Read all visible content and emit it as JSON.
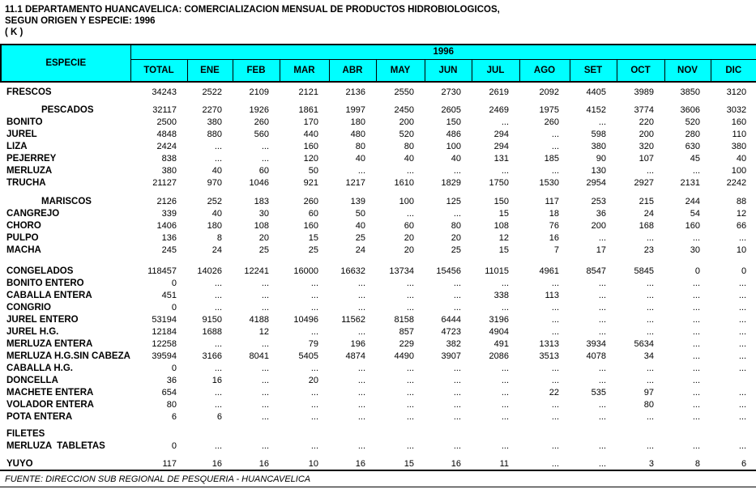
{
  "title": {
    "line1": "11.1 DEPARTAMENTO HUANCAVELICA: COMERCIALIZACION MENSUAL DE PRODUCTOS HIDROBIOLOGICOS,",
    "line2": "SEGUN ORIGEN Y ESPECIE: 1996",
    "line3": "( K )"
  },
  "colors": {
    "header_bg": "#00FFFF",
    "border": "#000000",
    "text": "#000000",
    "background": "#FFFFFF"
  },
  "table": {
    "especie_header": "ESPECIE",
    "year_header": "1996",
    "columns": [
      "TOTAL",
      "ENE",
      "FEB",
      "MAR",
      "ABR",
      "MAY",
      "JUN",
      "JUL",
      "AGO",
      "SET",
      "OCT",
      "NOV",
      "DIC"
    ],
    "rows": [
      {
        "name": "FRESCOS",
        "indent": 0,
        "values": [
          "34243",
          "2522",
          "2109",
          "2121",
          "2136",
          "2550",
          "2730",
          "2619",
          "2092",
          "4405",
          "3989",
          "3850",
          "3120"
        ]
      },
      {
        "spacer": 7
      },
      {
        "name": "PESCADOS",
        "indent": 1,
        "values": [
          "32117",
          "2270",
          "1926",
          "1861",
          "1997",
          "2450",
          "2605",
          "2469",
          "1975",
          "4152",
          "3774",
          "3606",
          "3032"
        ]
      },
      {
        "name": "BONITO",
        "indent": 0,
        "values": [
          "2500",
          "380",
          "260",
          "170",
          "180",
          "200",
          "150",
          "...",
          "260",
          "...",
          "220",
          "520",
          "160"
        ]
      },
      {
        "name": "JUREL",
        "indent": 0,
        "values": [
          "4848",
          "880",
          "560",
          "440",
          "480",
          "520",
          "486",
          "294",
          "...",
          "598",
          "200",
          "280",
          "110"
        ]
      },
      {
        "name": "LIZA",
        "indent": 0,
        "values": [
          "2424",
          "...",
          "...",
          "160",
          "80",
          "80",
          "100",
          "294",
          "...",
          "380",
          "320",
          "630",
          "380"
        ]
      },
      {
        "name": "PEJERREY",
        "indent": 0,
        "values": [
          "838",
          "...",
          "...",
          "120",
          "40",
          "40",
          "40",
          "131",
          "185",
          "90",
          "107",
          "45",
          "40"
        ]
      },
      {
        "name": "MERLUZA",
        "indent": 0,
        "values": [
          "380",
          "40",
          "60",
          "50",
          "...",
          "...",
          "...",
          "...",
          "...",
          "130",
          "...",
          "...",
          "100"
        ]
      },
      {
        "name": "TRUCHA",
        "indent": 0,
        "values": [
          "21127",
          "970",
          "1046",
          "921",
          "1217",
          "1610",
          "1829",
          "1750",
          "1530",
          "2954",
          "2927",
          "2131",
          "2242"
        ]
      },
      {
        "spacer": 8
      },
      {
        "name": "MARISCOS",
        "indent": 1,
        "values": [
          "2126",
          "252",
          "183",
          "260",
          "139",
          "100",
          "125",
          "150",
          "117",
          "253",
          "215",
          "244",
          "88"
        ]
      },
      {
        "name": "CANGREJO",
        "indent": 0,
        "values": [
          "339",
          "40",
          "30",
          "60",
          "50",
          "...",
          "...",
          "15",
          "18",
          "36",
          "24",
          "54",
          "12"
        ]
      },
      {
        "name": "CHORO",
        "indent": 0,
        "values": [
          "1406",
          "180",
          "108",
          "160",
          "40",
          "60",
          "80",
          "108",
          "76",
          "200",
          "168",
          "160",
          "66"
        ]
      },
      {
        "name": "PULPO",
        "indent": 0,
        "values": [
          "136",
          "8",
          "20",
          "15",
          "25",
          "20",
          "20",
          "12",
          "16",
          "...",
          "...",
          "...",
          "..."
        ]
      },
      {
        "name": "MACHA",
        "indent": 0,
        "values": [
          "245",
          "24",
          "25",
          "25",
          "24",
          "20",
          "25",
          "15",
          "7",
          "17",
          "23",
          "30",
          "10"
        ]
      },
      {
        "spacer": 11
      },
      {
        "name": "CONGELADOS",
        "indent": 0,
        "values": [
          "118457",
          "14026",
          "12241",
          "16000",
          "16632",
          "13734",
          "15456",
          "11015",
          "4961",
          "8547",
          "5845",
          "0",
          "0"
        ]
      },
      {
        "name": "BONITO ENTERO",
        "indent": 0,
        "values": [
          "0",
          "...",
          "...",
          "...",
          "...",
          "...",
          "...",
          "...",
          "...",
          "...",
          "...",
          "...",
          "..."
        ]
      },
      {
        "name": "CABALLA ENTERA",
        "indent": 0,
        "values": [
          "451",
          "...",
          "...",
          "...",
          "...",
          "...",
          "...",
          "338",
          "113",
          "...",
          "...",
          "...",
          "..."
        ]
      },
      {
        "name": "CONGRIO",
        "indent": 0,
        "values": [
          "0",
          "...",
          "...",
          "...",
          "...",
          "...",
          "...",
          "...",
          "...",
          "...",
          "...",
          "...",
          "..."
        ]
      },
      {
        "name": "JUREL ENTERO",
        "indent": 0,
        "values": [
          "53194",
          "9150",
          "4188",
          "10496",
          "11562",
          "8158",
          "6444",
          "3196",
          "...",
          "...",
          "...",
          "...",
          "..."
        ]
      },
      {
        "name": "JUREL H.G.",
        "indent": 0,
        "values": [
          "12184",
          "1688",
          "12",
          "...",
          "...",
          "857",
          "4723",
          "4904",
          "...",
          "...",
          "...",
          "...",
          "..."
        ]
      },
      {
        "name": "MERLUZA ENTERA",
        "indent": 0,
        "values": [
          "12258",
          "...",
          "...",
          "79",
          "196",
          "229",
          "382",
          "491",
          "1313",
          "3934",
          "5634",
          "...",
          "..."
        ]
      },
      {
        "name": "MERLUZA H.G.SIN CABEZA",
        "indent": 0,
        "values": [
          "39594",
          "3166",
          "8041",
          "5405",
          "4874",
          "4490",
          "3907",
          "2086",
          "3513",
          "4078",
          "34",
          "...",
          "..."
        ]
      },
      {
        "name": "CABALLA H.G.",
        "indent": 0,
        "values": [
          "0",
          "...",
          "...",
          "...",
          "...",
          "...",
          "...",
          "...",
          "...",
          "...",
          "...",
          "...",
          "..."
        ]
      },
      {
        "name": "DONCELLA",
        "indent": 0,
        "values": [
          "36",
          "16",
          "...",
          "20",
          "...",
          "...",
          "...",
          "...",
          "...",
          "...",
          "...",
          "...",
          ""
        ]
      },
      {
        "name": "MACHETE ENTERA",
        "indent": 0,
        "values": [
          "654",
          "...",
          "...",
          "...",
          "...",
          "...",
          "...",
          "...",
          "22",
          "535",
          "97",
          "...",
          "..."
        ]
      },
      {
        "name": "VOLADOR ENTERA",
        "indent": 0,
        "values": [
          "80",
          "...",
          "...",
          "...",
          "...",
          "...",
          "...",
          "...",
          "...",
          "...",
          "80",
          "...",
          "..."
        ]
      },
      {
        "name": "POTA ENTERA",
        "indent": 0,
        "values": [
          "6",
          "6",
          "...",
          "...",
          "...",
          "...",
          "...",
          "...",
          "...",
          "...",
          "...",
          "...",
          "..."
        ]
      },
      {
        "spacer": 6
      },
      {
        "name": "FILETES",
        "indent": 0,
        "values": [
          "",
          "",
          "",
          "",
          "",
          "",
          "",
          "",
          "",
          "",
          "",
          "",
          ""
        ]
      },
      {
        "name": "MERLUZA  TABLETAS",
        "indent": 0,
        "values": [
          "0",
          "...",
          "...",
          "...",
          "...",
          "...",
          "...",
          "...",
          "...",
          "...",
          "...",
          "...",
          "..."
        ]
      },
      {
        "spacer": 7
      },
      {
        "name": "YUYO",
        "indent": 0,
        "values": [
          "117",
          "16",
          "16",
          "10",
          "16",
          "15",
          "16",
          "11",
          "...",
          "...",
          "3",
          "8",
          "6"
        ]
      }
    ]
  },
  "footer": {
    "source": "FUENTE: DIRECCION SUB REGIONAL DE PESQUERIA - HUANCAVELICA"
  }
}
